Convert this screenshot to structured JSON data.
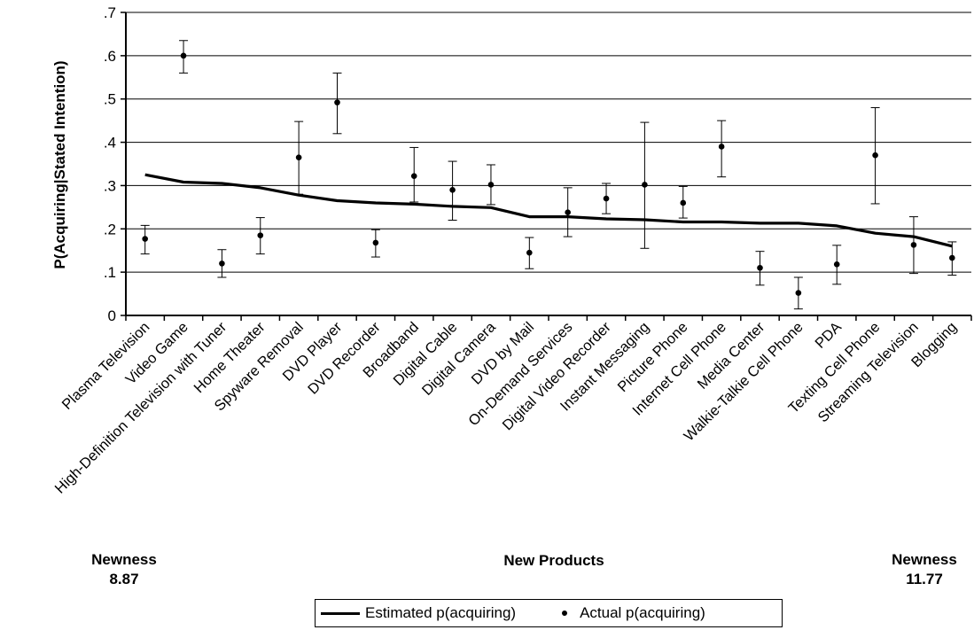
{
  "chart_data": {
    "type": "line",
    "ylabel": "P(Acquiring|Stated Intention)",
    "xlabel": "New Products",
    "ylim": [
      0,
      0.7
    ],
    "yticks": [
      {
        "value": 0,
        "label": "0"
      },
      {
        "value": 0.1,
        "label": ".1"
      },
      {
        "value": 0.2,
        "label": ".2"
      },
      {
        "value": 0.3,
        "label": ".3"
      },
      {
        "value": 0.4,
        "label": ".4"
      },
      {
        "value": 0.5,
        "label": ".5"
      },
      {
        "value": 0.6,
        "label": ".6"
      },
      {
        "value": 0.7,
        "label": ".7"
      }
    ],
    "grid": true,
    "legend_position": "bottom",
    "categories": [
      "Plasma Television",
      "Video Game",
      "High-Definition Television with Tuner",
      "Home Theater",
      "Spyware Removal",
      "DVD Player",
      "DVD Recorder",
      "Broadband",
      "Digital Cable",
      "Digital Camera",
      "DVD by Mail",
      "On-Demand Services",
      "Digital Video Recorder",
      "Instant Messaging",
      "Picture Phone",
      "Internet Cell Phone",
      "Media Center",
      "Walkie-Talkie Cell Phone",
      "PDA",
      "Texting Cell Phone",
      "Streaming Television",
      "Blogging"
    ],
    "series": [
      {
        "name": "Estimated p(acquiring)",
        "type": "line",
        "values": [
          0.325,
          0.308,
          0.305,
          0.295,
          0.278,
          0.265,
          0.26,
          0.257,
          0.252,
          0.249,
          0.228,
          0.228,
          0.223,
          0.221,
          0.216,
          0.216,
          0.213,
          0.213,
          0.207,
          0.19,
          0.182,
          0.16
        ]
      },
      {
        "name": "Actual p(acquiring)",
        "type": "scatter",
        "values": [
          0.177,
          0.6,
          0.12,
          0.185,
          0.365,
          0.492,
          0.168,
          0.322,
          0.29,
          0.302,
          0.145,
          0.238,
          0.27,
          0.302,
          0.26,
          0.39,
          0.11,
          0.052,
          0.118,
          0.37,
          0.163,
          0.133
        ],
        "error_low": [
          0.142,
          0.56,
          0.088,
          0.142,
          0.28,
          0.42,
          0.135,
          0.262,
          0.22,
          0.256,
          0.108,
          0.182,
          0.235,
          0.155,
          0.225,
          0.32,
          0.07,
          0.015,
          0.072,
          0.258,
          0.097,
          0.093
        ],
        "error_high": [
          0.208,
          0.635,
          0.152,
          0.226,
          0.448,
          0.56,
          0.198,
          0.388,
          0.356,
          0.348,
          0.18,
          0.295,
          0.305,
          0.446,
          0.298,
          0.45,
          0.148,
          0.088,
          0.162,
          0.48,
          0.228,
          0.17
        ]
      }
    ],
    "annotations": [
      {
        "id": "left",
        "text": "Newness",
        "value": "8.87"
      },
      {
        "id": "right",
        "text": "Newness",
        "value": "11.77"
      }
    ]
  },
  "legend": {
    "estimated": "Estimated p(acquiring)",
    "actual": "Actual p(acquiring)"
  }
}
